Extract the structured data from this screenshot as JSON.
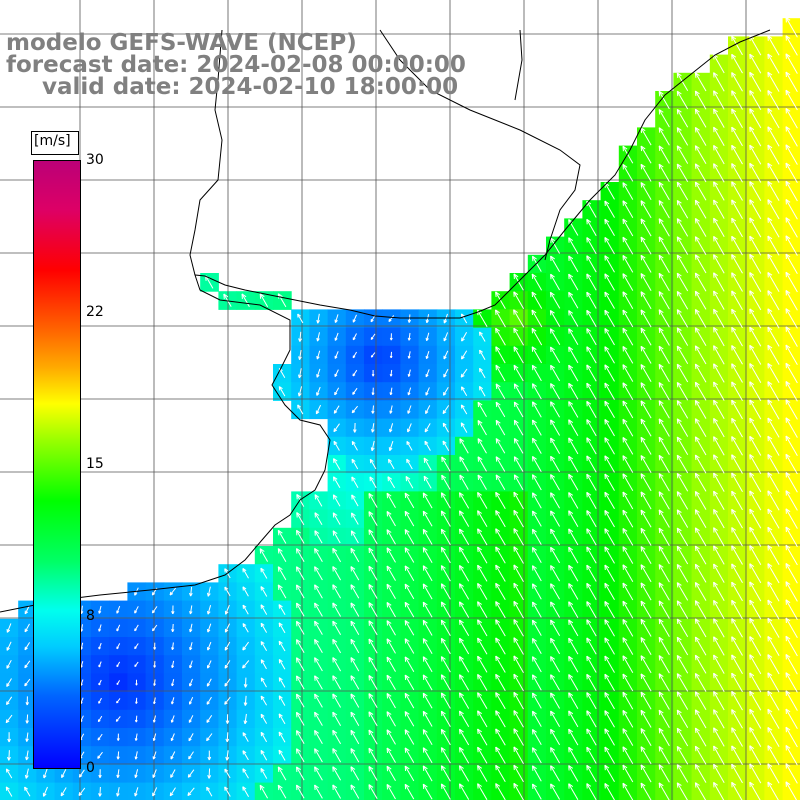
{
  "title": {
    "line1": "modelo GEFS-WAVE (NCEP)",
    "line2": "forecast date: 2024-02-08 00:00:00",
    "line3": "valid date: 2024-02-10 18:00:00"
  },
  "colorbar": {
    "unit": "[m/s]",
    "ticks": [
      "30",
      "22",
      "15",
      "8",
      "0"
    ],
    "range": [
      0,
      30
    ],
    "colors": [
      "#0000ff",
      "#00ccff",
      "#00ff00",
      "#ffff00",
      "#ff0000",
      "#bb0077"
    ]
  },
  "map": {
    "variable": "wind speed and direction",
    "land_color": "#ffffff",
    "grid": true,
    "arrow_color": "#ffffff",
    "coastline_color": "#000000"
  }
}
